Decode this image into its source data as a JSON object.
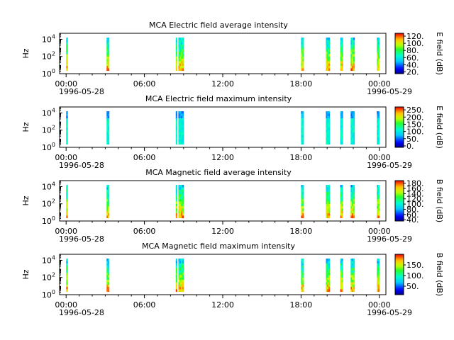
{
  "chart_data": [
    {
      "type": "heatmap",
      "title": "MCA  Electric field average intensity",
      "ylabel": "Hz",
      "y_scale": "log",
      "y_ticks": [
        {
          "exp": "0"
        },
        {
          "exp": "2"
        },
        {
          "exp": "4"
        }
      ],
      "x_ticks": [
        "00:00",
        "06:00",
        "12:00",
        "18:00",
        "00:00"
      ],
      "x_date_start": "1996-05-28",
      "x_date_end": "1996-05-29",
      "colorbar_label": "E field (dB)",
      "colorbar_ticks": [
        "20.",
        "40.",
        "60.",
        "80.",
        "100.",
        "120."
      ],
      "colorbar_range": [
        15,
        128
      ],
      "data_segments_hours": [
        [
          0.0,
          0.12
        ],
        [
          3.1,
          3.3
        ],
        [
          8.4,
          8.5
        ],
        [
          8.6,
          9.0
        ],
        [
          18.0,
          18.2
        ],
        [
          19.9,
          20.2
        ],
        [
          21.0,
          21.2
        ],
        [
          21.8,
          22.1
        ],
        [
          23.8,
          24.0
        ]
      ]
    },
    {
      "type": "heatmap",
      "title": "MCA  Electric field maximum intensity",
      "ylabel": "Hz",
      "y_scale": "log",
      "y_ticks": [
        {
          "exp": "0"
        },
        {
          "exp": "2"
        },
        {
          "exp": "4"
        }
      ],
      "x_ticks": [
        "00:00",
        "06:00",
        "12:00",
        "18:00",
        "00:00"
      ],
      "x_date_start": "1996-05-28",
      "x_date_end": "1996-05-29",
      "colorbar_label": "E field (dB)",
      "colorbar_ticks": [
        "0.",
        "50.",
        "100.",
        "150.",
        "200.",
        "250."
      ],
      "colorbar_range": [
        -10,
        270
      ],
      "data_segments_hours": [
        [
          0.0,
          0.12
        ],
        [
          3.1,
          3.3
        ],
        [
          8.4,
          8.5
        ],
        [
          8.6,
          9.0
        ],
        [
          18.0,
          18.2
        ],
        [
          19.9,
          20.2
        ],
        [
          21.0,
          21.2
        ],
        [
          21.8,
          22.1
        ],
        [
          23.8,
          24.0
        ]
      ]
    },
    {
      "type": "heatmap",
      "title": "MCA  Magnetic field average intensity",
      "ylabel": "Hz",
      "y_scale": "log",
      "y_ticks": [
        {
          "exp": "0"
        },
        {
          "exp": "2"
        },
        {
          "exp": "4"
        }
      ],
      "x_ticks": [
        "00:00",
        "06:00",
        "12:00",
        "18:00",
        "00:00"
      ],
      "x_date_start": "1996-05-28",
      "x_date_end": "1996-05-29",
      "colorbar_label": "B field (dB)",
      "colorbar_ticks": [
        "40.",
        "60.",
        "80.",
        "100.",
        "120.",
        "140.",
        "160.",
        "180."
      ],
      "colorbar_range": [
        35,
        190
      ],
      "data_segments_hours": [
        [
          0.0,
          0.12
        ],
        [
          3.1,
          3.3
        ],
        [
          8.4,
          8.5
        ],
        [
          8.6,
          9.0
        ],
        [
          18.0,
          18.2
        ],
        [
          19.9,
          20.2
        ],
        [
          21.0,
          21.2
        ],
        [
          21.8,
          22.1
        ],
        [
          23.8,
          24.0
        ]
      ]
    },
    {
      "type": "heatmap",
      "title": "MCA  Magnetic field maximum intensity",
      "ylabel": "Hz",
      "y_scale": "log",
      "y_ticks": [
        {
          "exp": "0"
        },
        {
          "exp": "2"
        },
        {
          "exp": "4"
        }
      ],
      "x_ticks": [
        "00:00",
        "06:00",
        "12:00",
        "18:00",
        "00:00"
      ],
      "x_date_start": "1996-05-28",
      "x_date_end": "1996-05-29",
      "colorbar_label": "B field (dB)",
      "colorbar_ticks": [
        "50.",
        "100.",
        "150."
      ],
      "colorbar_range": [
        10,
        200
      ],
      "data_segments_hours": [
        [
          0.0,
          0.12
        ],
        [
          3.1,
          3.3
        ],
        [
          8.4,
          8.5
        ],
        [
          8.6,
          9.0
        ],
        [
          18.0,
          18.2
        ],
        [
          19.9,
          20.2
        ],
        [
          21.0,
          21.2
        ],
        [
          21.8,
          22.1
        ],
        [
          23.8,
          24.0
        ]
      ]
    }
  ]
}
